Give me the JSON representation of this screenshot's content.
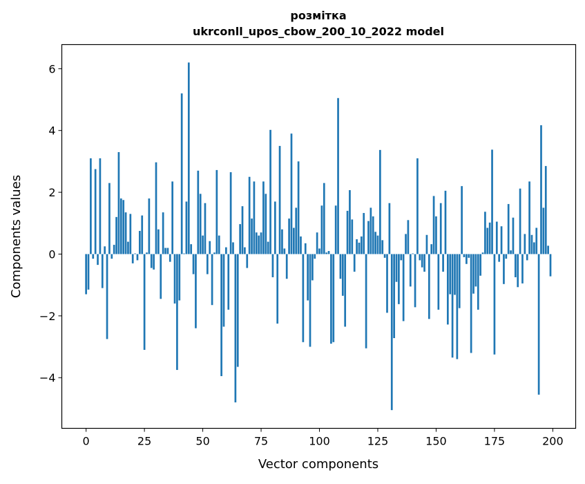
{
  "chart_data": {
    "type": "bar",
    "title": "розмітка",
    "subtitle": "ukrconll_upos_cbow_200_10_2022 model",
    "xlabel": "Vector components",
    "ylabel": "Components values",
    "xlim": [
      -10.4,
      209.8
    ],
    "ylim": [
      -5.64,
      6.78
    ],
    "xticks": [
      0,
      25,
      50,
      75,
      100,
      125,
      150,
      175,
      200
    ],
    "yticks": [
      -4,
      -2,
      0,
      2,
      4,
      6
    ],
    "ytick_labels": [
      "−4",
      "−2",
      "0",
      "2",
      "4",
      "6"
    ],
    "grid": false,
    "bar_color": "#1f77b4",
    "values": [
      -1.3,
      -1.15,
      3.1,
      -0.15,
      2.75,
      -0.35,
      3.1,
      -1.1,
      0.25,
      -2.75,
      2.3,
      -0.15,
      0.3,
      1.2,
      3.3,
      1.8,
      1.75,
      1.35,
      0.4,
      1.3,
      -0.3,
      0.02,
      -0.2,
      0.75,
      1.25,
      -3.1,
      0.05,
      1.8,
      -0.45,
      -0.5,
      2.97,
      0.8,
      -1.45,
      1.35,
      0.2,
      0.2,
      -0.25,
      2.35,
      -1.6,
      -3.75,
      -1.5,
      5.2,
      0.02,
      1.7,
      6.2,
      0.32,
      -0.65,
      -2.4,
      2.7,
      1.95,
      0.6,
      1.65,
      -0.65,
      0.42,
      -1.65,
      0.05,
      2.72,
      0.6,
      -3.95,
      -2.35,
      0.22,
      -1.8,
      2.65,
      0.38,
      -4.8,
      -3.65,
      0.97,
      1.55,
      0.22,
      -0.45,
      2.5,
      1.15,
      2.35,
      0.7,
      0.6,
      0.7,
      2.35,
      1.95,
      0.4,
      4.02,
      -0.75,
      1.7,
      -2.25,
      3.5,
      0.8,
      0.18,
      -0.8,
      1.15,
      3.9,
      0.85,
      1.5,
      3.0,
      0.57,
      -2.85,
      0.35,
      -1.5,
      -3.0,
      -0.85,
      -0.15,
      0.7,
      0.18,
      1.57,
      2.3,
      0.05,
      0.1,
      -2.9,
      -2.85,
      1.57,
      5.05,
      -0.8,
      -1.35,
      -2.35,
      1.4,
      2.07,
      1.12,
      -0.57,
      0.48,
      0.37,
      0.57,
      1.33,
      -3.05,
      1.07,
      1.5,
      1.22,
      0.72,
      0.6,
      3.37,
      0.45,
      -0.12,
      -1.9,
      1.65,
      -5.05,
      -2.72,
      -0.9,
      -1.62,
      -0.2,
      -2.17,
      0.65,
      1.1,
      -1.05,
      0.02,
      -1.72,
      3.1,
      -0.2,
      -0.43,
      -0.57,
      0.62,
      -2.1,
      0.32,
      1.88,
      1.22,
      -1.8,
      1.65,
      -0.57,
      2.05,
      -2.28,
      -1.3,
      -3.35,
      -1.32,
      -3.4,
      -1.75,
      2.2,
      -0.1,
      -0.32,
      -0.12,
      -3.2,
      -1.28,
      -1.05,
      -1.8,
      -0.7,
      0.05,
      1.37,
      0.85,
      1.02,
      3.38,
      -3.25,
      1.05,
      -0.25,
      0.9,
      -0.97,
      -0.15,
      1.62,
      0.12,
      1.18,
      -0.75,
      -1.07,
      2.12,
      -0.95,
      0.65,
      -0.2,
      2.35,
      0.62,
      0.38,
      0.85,
      -4.55,
      4.17,
      1.5,
      2.85,
      0.27,
      -0.72
    ]
  }
}
